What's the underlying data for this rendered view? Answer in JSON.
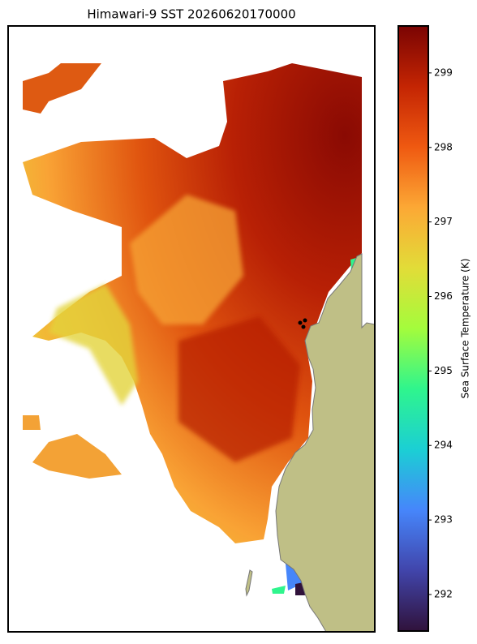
{
  "chart_data": {
    "type": "map",
    "title": "Himawari-9 SST 20260620170000",
    "colorbar": {
      "label": "Sea Surface Temperature (K)",
      "lim": [
        291.51,
        299.63
      ],
      "ticks": [
        292,
        293,
        294,
        295,
        296,
        297,
        298,
        299
      ]
    }
  }
}
